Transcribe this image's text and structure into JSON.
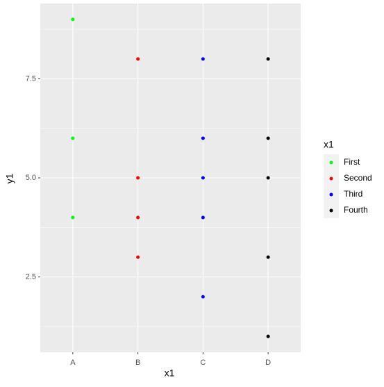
{
  "chart_data": {
    "type": "scatter",
    "x_label": "x1",
    "y_label": "y1",
    "legend_title": "x1",
    "categories": [
      "A",
      "B",
      "C",
      "D"
    ],
    "series": [
      {
        "name": "First",
        "color": "#00ff00",
        "x": [
          "A",
          "A",
          "A"
        ],
        "values": [
          9,
          6,
          4
        ]
      },
      {
        "name": "Second",
        "color": "#ff0000",
        "x": [
          "B",
          "B",
          "B",
          "B"
        ],
        "values": [
          8,
          5,
          4,
          3
        ]
      },
      {
        "name": "Third",
        "color": "#0000ff",
        "x": [
          "C",
          "C",
          "C",
          "C",
          "C"
        ],
        "values": [
          8,
          6,
          5,
          4,
          2
        ]
      },
      {
        "name": "Fourth",
        "color": "#000000",
        "x": [
          "D",
          "D",
          "D",
          "D",
          "D"
        ],
        "values": [
          8,
          6,
          5,
          3,
          1
        ]
      }
    ],
    "ylim": [
      0.6,
      9.4
    ],
    "yticks": [
      2.5,
      {
        "value": 5,
        "label": "5.0"
      },
      7.5
    ],
    "y_minor_ticks": [
      1.25,
      3.75,
      6.25,
      8.75
    ],
    "grid": true,
    "legend": "right"
  }
}
